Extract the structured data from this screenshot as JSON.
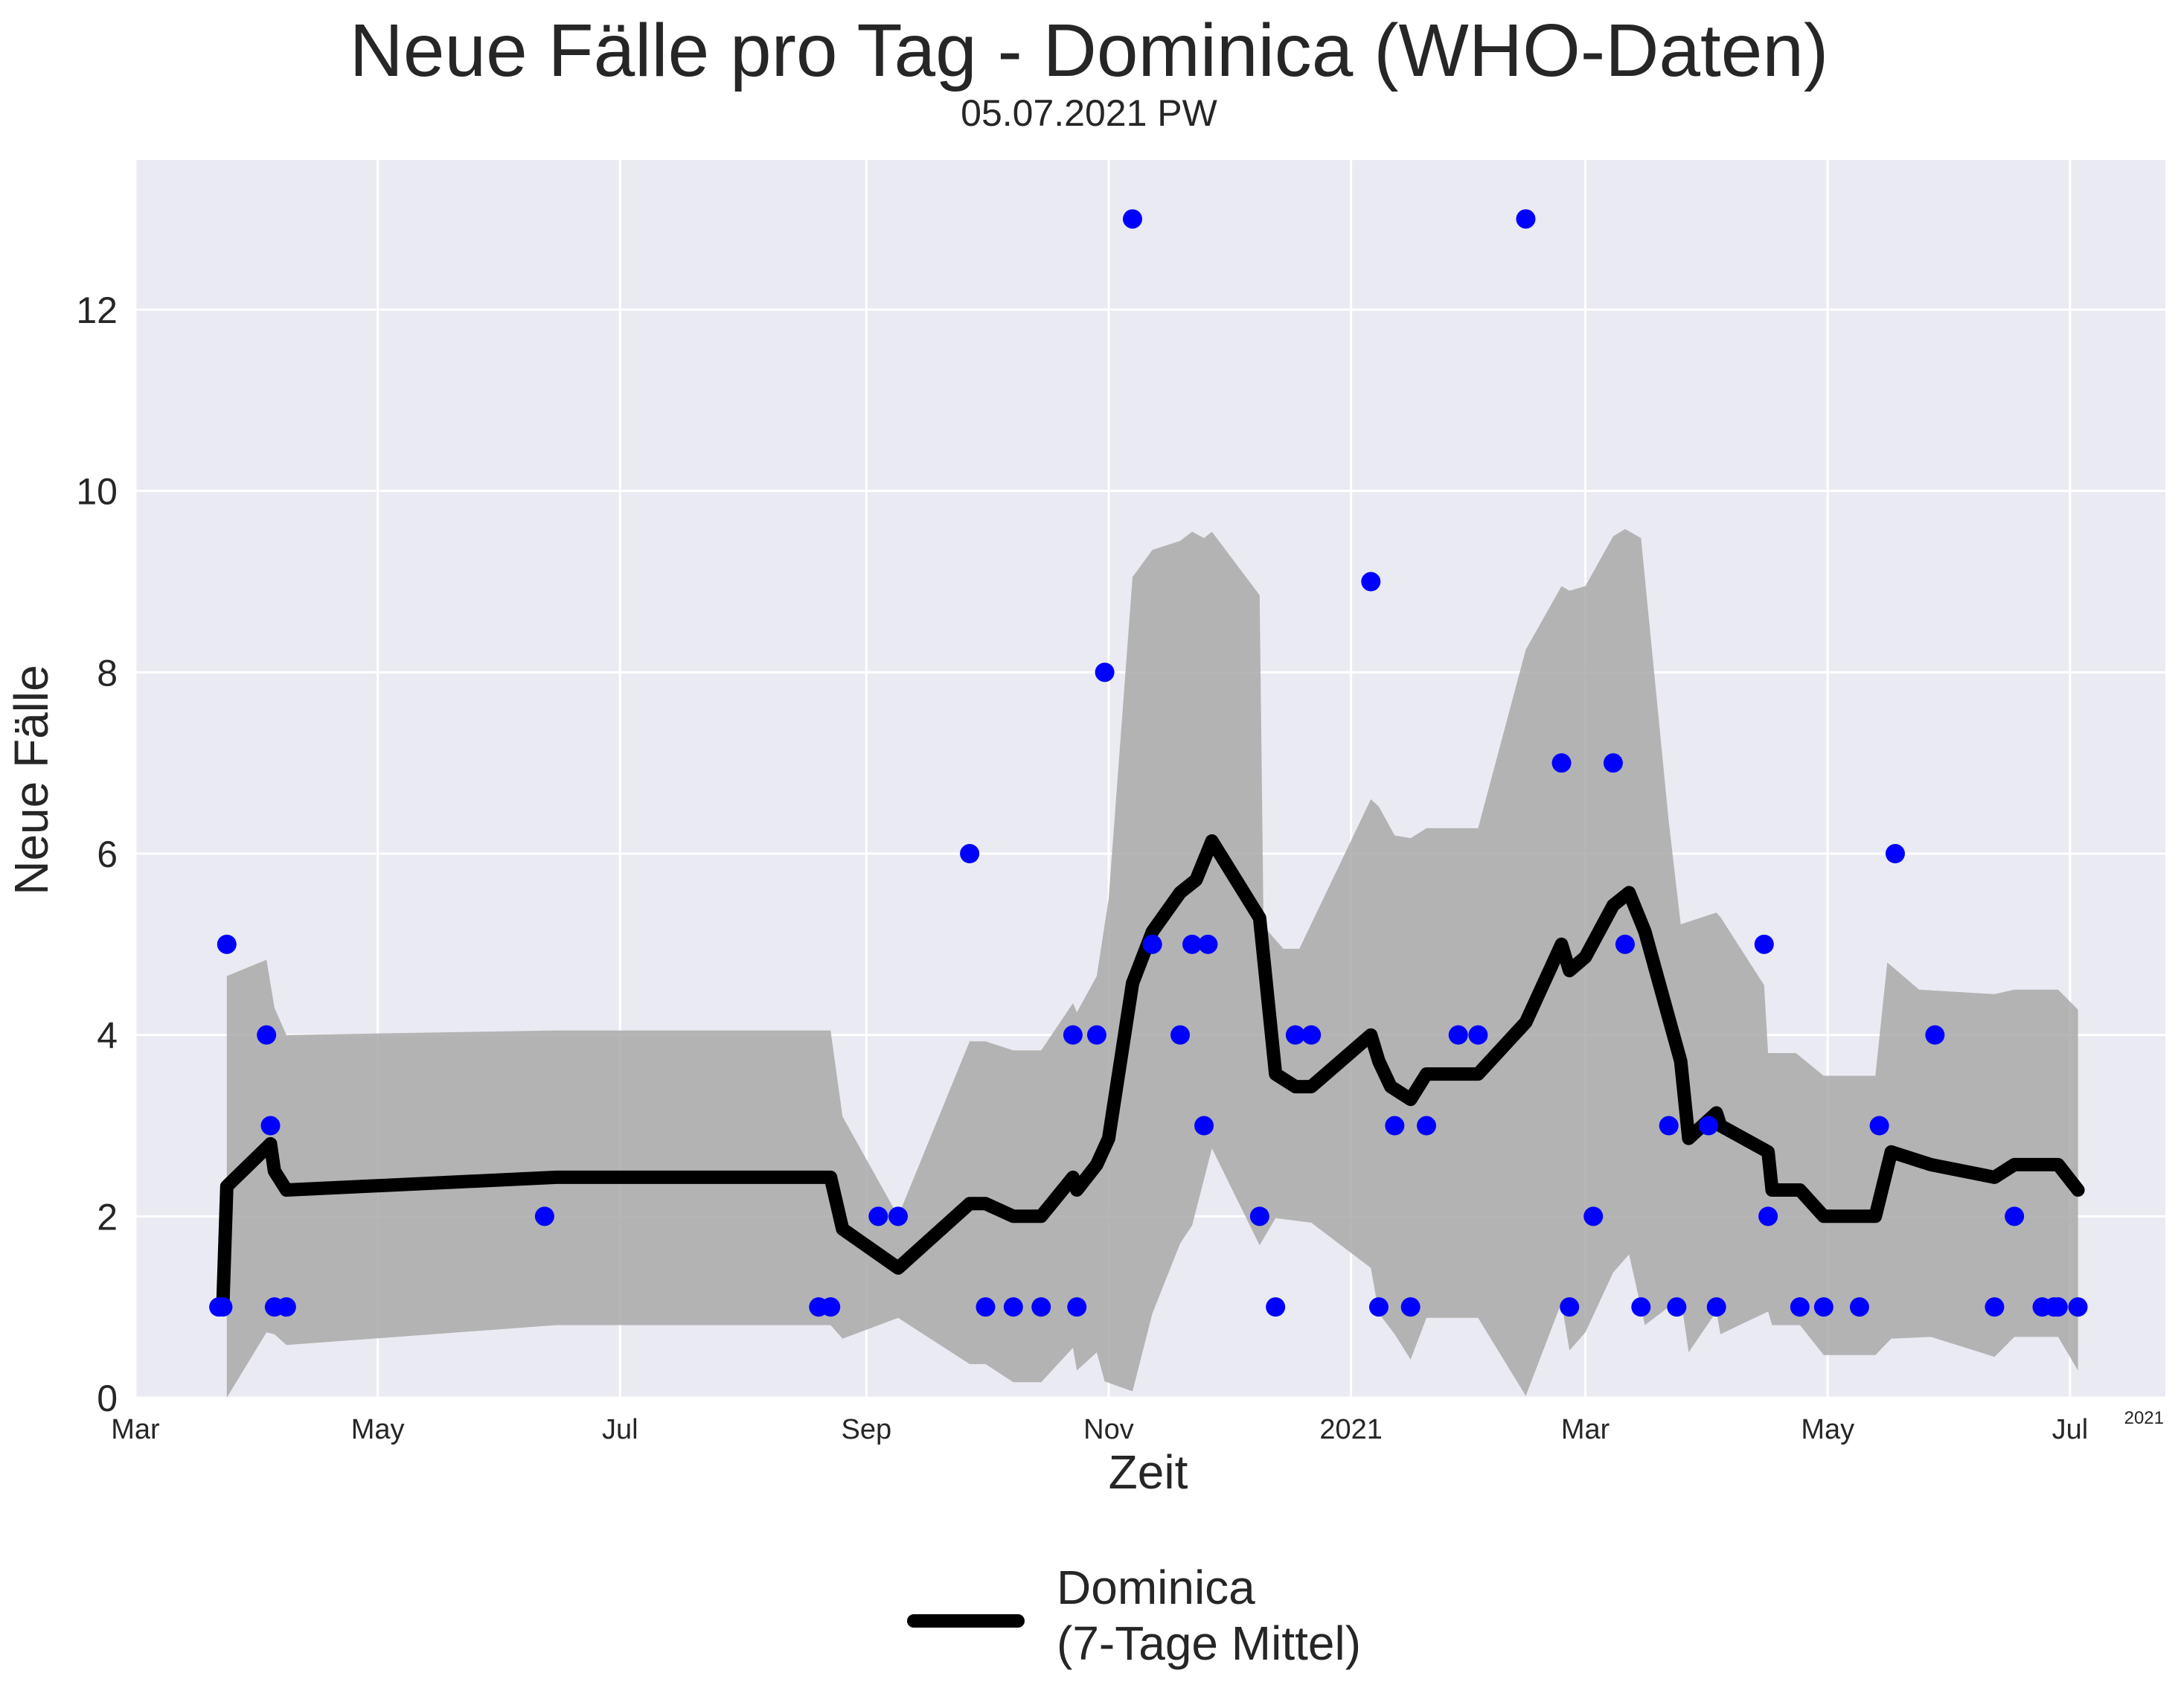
{
  "chart_data": {
    "type": "line",
    "title": "Neue Fälle pro Tag - Dominica (WHO-Daten)",
    "subtitle": "05.07.2021 PW",
    "xlabel": "Zeit",
    "ylabel": "Neue Fälle",
    "x_offset_label": "2021",
    "ylim": [
      0,
      13.65
    ],
    "xlim": [
      "2020-03-01",
      "2021-07-25"
    ],
    "grid": true,
    "legend_position": "bottom-center",
    "colors": {
      "plot_bg": "#eaeaf2",
      "grid": "#ffffff",
      "points": "#0000ff",
      "line": "#000000",
      "band": "#a9a9a9"
    },
    "x_ticks": [
      {
        "date": "2020-03-01",
        "label": "Mar"
      },
      {
        "date": "2020-05-01",
        "label": "May"
      },
      {
        "date": "2020-07-01",
        "label": "Jul"
      },
      {
        "date": "2020-09-01",
        "label": "Sep"
      },
      {
        "date": "2020-11-01",
        "label": "Nov"
      },
      {
        "date": "2021-01-01",
        "label": "2021"
      },
      {
        "date": "2021-03-01",
        "label": "Mar"
      },
      {
        "date": "2021-05-01",
        "label": "May"
      },
      {
        "date": "2021-07-01",
        "label": "Jul"
      }
    ],
    "y_ticks": [
      0,
      2,
      4,
      6,
      8,
      10,
      12
    ],
    "series": [
      {
        "name": "Dominica\n(7-Tage Mittel)",
        "kind": "line",
        "points": [
          [
            "2020-03-23",
            1.0
          ],
          [
            "2020-03-24",
            2.33
          ],
          [
            "2020-04-04",
            2.8
          ],
          [
            "2020-04-05",
            2.5
          ],
          [
            "2020-04-08",
            2.29
          ],
          [
            "2020-06-15",
            2.43
          ],
          [
            "2020-08-23",
            2.43
          ],
          [
            "2020-08-26",
            1.86
          ],
          [
            "2020-09-09",
            1.43
          ],
          [
            "2020-09-27",
            2.14
          ],
          [
            "2020-10-01",
            2.14
          ],
          [
            "2020-10-08",
            2.0
          ],
          [
            "2020-10-15",
            2.0
          ],
          [
            "2020-10-23",
            2.43
          ],
          [
            "2020-10-24",
            2.29
          ],
          [
            "2020-10-29",
            2.57
          ],
          [
            "2020-11-01",
            2.86
          ],
          [
            "2020-11-07",
            4.57
          ],
          [
            "2020-11-12",
            5.14
          ],
          [
            "2020-11-19",
            5.57
          ],
          [
            "2020-11-23",
            5.71
          ],
          [
            "2020-11-27",
            6.14
          ],
          [
            "2020-12-09",
            5.29
          ],
          [
            "2020-12-13",
            3.57
          ],
          [
            "2020-12-18",
            3.43
          ],
          [
            "2020-12-22",
            3.43
          ],
          [
            "2021-01-06",
            4.0
          ],
          [
            "2021-01-08",
            3.71
          ],
          [
            "2021-01-11",
            3.43
          ],
          [
            "2021-01-16",
            3.29
          ],
          [
            "2021-01-20",
            3.57
          ],
          [
            "2021-02-02",
            3.57
          ],
          [
            "2021-02-14",
            4.14
          ],
          [
            "2021-02-23",
            5.0
          ],
          [
            "2021-02-25",
            4.71
          ],
          [
            "2021-03-01",
            4.86
          ],
          [
            "2021-03-08",
            5.43
          ],
          [
            "2021-03-12",
            5.57
          ],
          [
            "2021-03-16",
            5.14
          ],
          [
            "2021-03-25",
            3.71
          ],
          [
            "2021-03-27",
            2.86
          ],
          [
            "2021-04-03",
            3.14
          ],
          [
            "2021-04-04",
            3.0
          ],
          [
            "2021-04-16",
            2.71
          ],
          [
            "2021-04-17",
            2.29
          ],
          [
            "2021-04-24",
            2.29
          ],
          [
            "2021-04-30",
            2.0
          ],
          [
            "2021-05-13",
            2.0
          ],
          [
            "2021-05-17",
            2.71
          ],
          [
            "2021-05-27",
            2.57
          ],
          [
            "2021-06-12",
            2.43
          ],
          [
            "2021-06-17",
            2.57
          ],
          [
            "2021-06-28",
            2.57
          ],
          [
            "2021-07-03",
            2.29
          ]
        ]
      },
      {
        "name": "",
        "kind": "scatter",
        "points": [
          [
            "2020-03-22",
            1
          ],
          [
            "2020-03-23",
            1
          ],
          [
            "2020-03-24",
            5
          ],
          [
            "2020-04-03",
            4
          ],
          [
            "2020-04-04",
            3
          ],
          [
            "2020-04-05",
            1
          ],
          [
            "2020-04-08",
            1
          ],
          [
            "2020-06-12",
            2
          ],
          [
            "2020-08-20",
            1
          ],
          [
            "2020-08-23",
            1
          ],
          [
            "2020-09-04",
            2
          ],
          [
            "2020-09-09",
            2
          ],
          [
            "2020-09-27",
            6
          ],
          [
            "2020-10-01",
            1
          ],
          [
            "2020-10-08",
            1
          ],
          [
            "2020-10-15",
            1
          ],
          [
            "2020-10-23",
            4
          ],
          [
            "2020-10-24",
            1
          ],
          [
            "2020-10-29",
            4
          ],
          [
            "2020-10-31",
            8
          ],
          [
            "2020-11-07",
            13
          ],
          [
            "2020-11-12",
            5
          ],
          [
            "2020-11-19",
            4
          ],
          [
            "2020-11-22",
            5
          ],
          [
            "2020-11-25",
            3
          ],
          [
            "2020-11-26",
            5
          ],
          [
            "2020-12-09",
            2
          ],
          [
            "2020-12-13",
            1
          ],
          [
            "2020-12-18",
            4
          ],
          [
            "2020-12-22",
            4
          ],
          [
            "2021-01-06",
            9
          ],
          [
            "2021-01-08",
            1
          ],
          [
            "2021-01-12",
            3
          ],
          [
            "2021-01-16",
            1
          ],
          [
            "2021-01-20",
            3
          ],
          [
            "2021-01-28",
            4
          ],
          [
            "2021-02-02",
            4
          ],
          [
            "2021-02-14",
            13
          ],
          [
            "2021-02-23",
            7
          ],
          [
            "2021-02-25",
            1
          ],
          [
            "2021-03-03",
            2
          ],
          [
            "2021-03-08",
            7
          ],
          [
            "2021-03-11",
            5
          ],
          [
            "2021-03-15",
            1
          ],
          [
            "2021-03-22",
            3
          ],
          [
            "2021-03-24",
            1
          ],
          [
            "2021-04-01",
            3
          ],
          [
            "2021-04-03",
            1
          ],
          [
            "2021-04-15",
            5
          ],
          [
            "2021-04-16",
            2
          ],
          [
            "2021-04-24",
            1
          ],
          [
            "2021-04-30",
            1
          ],
          [
            "2021-05-09",
            1
          ],
          [
            "2021-05-14",
            3
          ],
          [
            "2021-05-18",
            6
          ],
          [
            "2021-05-28",
            4
          ],
          [
            "2021-06-12",
            1
          ],
          [
            "2021-06-17",
            2
          ],
          [
            "2021-06-24",
            1
          ],
          [
            "2021-06-27",
            1
          ],
          [
            "2021-06-28",
            1
          ],
          [
            "2021-07-03",
            1
          ]
        ]
      }
    ],
    "band": {
      "upper": [
        [
          "2020-03-24",
          4.65
        ],
        [
          "2020-04-03",
          4.83
        ],
        [
          "2020-04-05",
          4.3
        ],
        [
          "2020-04-08",
          4.0
        ],
        [
          "2020-06-15",
          4.05
        ],
        [
          "2020-08-23",
          4.05
        ],
        [
          "2020-08-26",
          3.1
        ],
        [
          "2020-09-09",
          2.0
        ],
        [
          "2020-09-27",
          3.93
        ],
        [
          "2020-10-01",
          3.93
        ],
        [
          "2020-10-08",
          3.83
        ],
        [
          "2020-10-15",
          3.83
        ],
        [
          "2020-10-23",
          4.35
        ],
        [
          "2020-10-24",
          4.25
        ],
        [
          "2020-10-29",
          4.65
        ],
        [
          "2020-11-01",
          5.5
        ],
        [
          "2020-11-07",
          9.05
        ],
        [
          "2020-11-12",
          9.35
        ],
        [
          "2020-11-19",
          9.45
        ],
        [
          "2020-11-22",
          9.55
        ],
        [
          "2020-11-25",
          9.48
        ],
        [
          "2020-11-27",
          9.55
        ],
        [
          "2020-12-09",
          8.85
        ],
        [
          "2020-12-10",
          5.2
        ],
        [
          "2020-12-15",
          4.95
        ],
        [
          "2020-12-19",
          4.95
        ],
        [
          "2021-01-06",
          6.6
        ],
        [
          "2021-01-08",
          6.52
        ],
        [
          "2021-01-12",
          6.2
        ],
        [
          "2021-01-16",
          6.17
        ],
        [
          "2021-01-20",
          6.28
        ],
        [
          "2021-02-02",
          6.28
        ],
        [
          "2021-02-14",
          8.25
        ],
        [
          "2021-02-23",
          8.95
        ],
        [
          "2021-02-25",
          8.9
        ],
        [
          "2021-03-01",
          8.95
        ],
        [
          "2021-03-08",
          9.5
        ],
        [
          "2021-03-11",
          9.58
        ],
        [
          "2021-03-15",
          9.48
        ],
        [
          "2021-03-22",
          6.35
        ],
        [
          "2021-03-25",
          5.22
        ],
        [
          "2021-04-03",
          5.35
        ],
        [
          "2021-04-04",
          5.3
        ],
        [
          "2021-04-15",
          4.55
        ],
        [
          "2021-04-16",
          3.8
        ],
        [
          "2021-04-23",
          3.8
        ],
        [
          "2021-04-30",
          3.55
        ],
        [
          "2021-05-13",
          3.55
        ],
        [
          "2021-05-16",
          4.8
        ],
        [
          "2021-05-24",
          4.5
        ],
        [
          "2021-06-12",
          4.45
        ],
        [
          "2021-06-17",
          4.5
        ],
        [
          "2021-06-28",
          4.5
        ],
        [
          "2021-07-03",
          4.28
        ]
      ],
      "lower": [
        [
          "2020-03-24",
          0.0
        ],
        [
          "2020-04-03",
          0.72
        ],
        [
          "2020-04-05",
          0.7
        ],
        [
          "2020-04-08",
          0.58
        ],
        [
          "2020-06-15",
          0.8
        ],
        [
          "2020-08-23",
          0.8
        ],
        [
          "2020-08-26",
          0.65
        ],
        [
          "2020-09-09",
          0.88
        ],
        [
          "2020-09-27",
          0.37
        ],
        [
          "2020-10-01",
          0.37
        ],
        [
          "2020-10-08",
          0.17
        ],
        [
          "2020-10-15",
          0.17
        ],
        [
          "2020-10-23",
          0.55
        ],
        [
          "2020-10-24",
          0.3
        ],
        [
          "2020-10-29",
          0.5
        ],
        [
          "2020-10-31",
          0.18
        ],
        [
          "2020-11-07",
          0.07
        ],
        [
          "2020-11-12",
          0.93
        ],
        [
          "2020-11-19",
          1.7
        ],
        [
          "2020-11-22",
          1.9
        ],
        [
          "2020-11-27",
          2.75
        ],
        [
          "2020-12-09",
          1.68
        ],
        [
          "2020-12-13",
          1.98
        ],
        [
          "2020-12-22",
          1.93
        ],
        [
          "2021-01-06",
          1.43
        ],
        [
          "2021-01-08",
          0.93
        ],
        [
          "2021-01-12",
          0.7
        ],
        [
          "2021-01-16",
          0.42
        ],
        [
          "2021-01-20",
          0.88
        ],
        [
          "2021-02-02",
          0.88
        ],
        [
          "2021-02-14",
          0.02
        ],
        [
          "2021-02-23",
          1.05
        ],
        [
          "2021-02-25",
          0.52
        ],
        [
          "2021-03-01",
          0.72
        ],
        [
          "2021-03-08",
          1.38
        ],
        [
          "2021-03-12",
          1.58
        ],
        [
          "2021-03-16",
          0.8
        ],
        [
          "2021-03-25",
          1.1
        ],
        [
          "2021-03-27",
          0.5
        ],
        [
          "2021-04-03",
          0.95
        ],
        [
          "2021-04-04",
          0.7
        ],
        [
          "2021-04-16",
          0.95
        ],
        [
          "2021-04-17",
          0.8
        ],
        [
          "2021-04-24",
          0.8
        ],
        [
          "2021-04-30",
          0.47
        ],
        [
          "2021-05-13",
          0.47
        ],
        [
          "2021-05-17",
          0.65
        ],
        [
          "2021-05-27",
          0.67
        ],
        [
          "2021-06-12",
          0.45
        ],
        [
          "2021-06-17",
          0.67
        ],
        [
          "2021-06-28",
          0.67
        ],
        [
          "2021-07-03",
          0.3
        ]
      ]
    }
  }
}
